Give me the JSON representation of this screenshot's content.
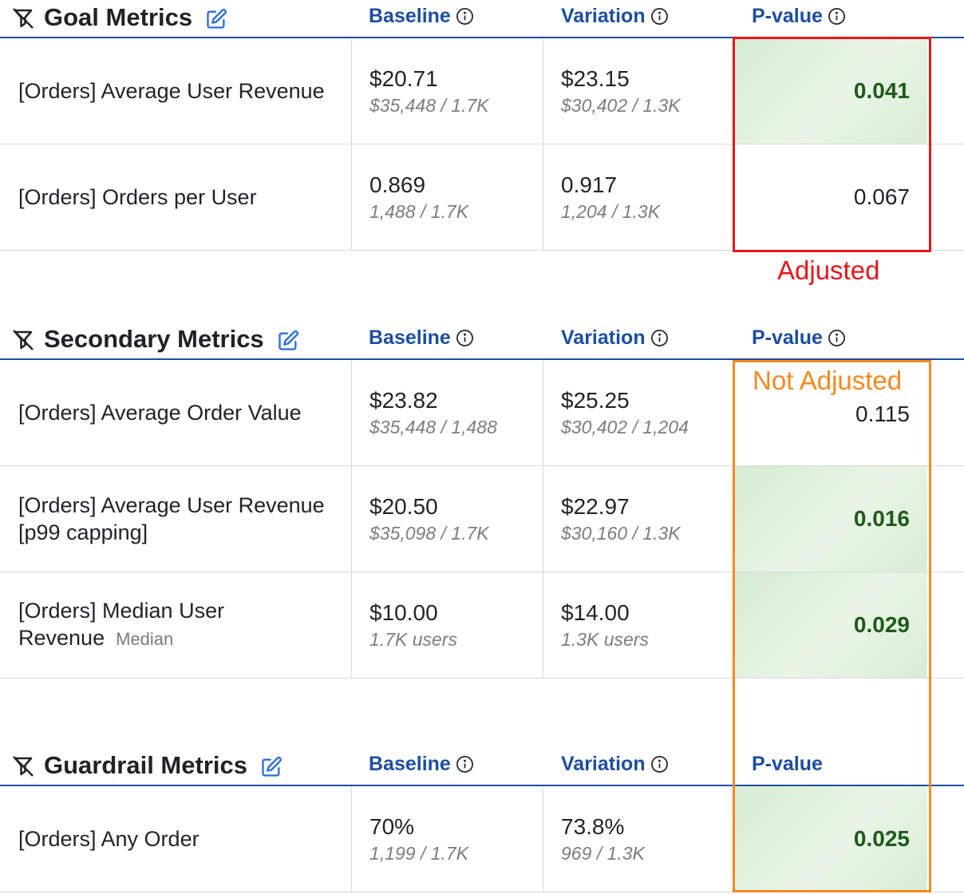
{
  "columns": {
    "baseline": "Baseline",
    "variation": "Variation",
    "pvalue": "P-value"
  },
  "sections": {
    "goal": {
      "title": "Goal Metrics",
      "rows": [
        {
          "name": "[Orders] Average User Revenue",
          "baseline": "$20.71",
          "baseline_frac": "$35,448 / 1.7K",
          "variation": "$23.15",
          "variation_frac": "$30,402 / 1.3K",
          "pvalue": "0.041",
          "significant": true
        },
        {
          "name": "[Orders] Orders per User",
          "baseline": "0.869",
          "baseline_frac": "1,488 / 1.7K",
          "variation": "0.917",
          "variation_frac": "1,204 / 1.3K",
          "pvalue": "0.067",
          "significant": false
        }
      ]
    },
    "secondary": {
      "title": "Secondary Metrics",
      "rows": [
        {
          "name": "[Orders] Average Order Value",
          "baseline": "$23.82",
          "baseline_frac": "$35,448 / 1,488",
          "variation": "$25.25",
          "variation_frac": "$30,402 / 1,204",
          "pvalue": "0.115",
          "significant": false
        },
        {
          "name": "[Orders] Average User Revenue [p99 capping]",
          "baseline": "$20.50",
          "baseline_frac": "$35,098 / 1.7K",
          "variation": "$22.97",
          "variation_frac": "$30,160 / 1.3K",
          "pvalue": "0.016",
          "significant": true
        },
        {
          "name": "[Orders] Median User Revenue",
          "name_sub": "Median",
          "baseline": "$10.00",
          "baseline_frac": "1.7K users",
          "variation": "$14.00",
          "variation_frac": "1.3K users",
          "pvalue": "0.029",
          "significant": true
        }
      ]
    },
    "guardrail": {
      "title": "Guardrail Metrics",
      "rows": [
        {
          "name": "[Orders] Any Order",
          "baseline": "70%",
          "baseline_frac": "1,199 / 1.7K",
          "variation": "73.8%",
          "variation_frac": "969 / 1.3K",
          "pvalue": "0.025",
          "significant": true
        }
      ]
    }
  },
  "annotations": {
    "adjusted": {
      "label": "Adjusted",
      "color": "#e8161b"
    },
    "not_adjusted": {
      "label": "Not Adjusted",
      "color": "#f5891f"
    }
  },
  "colors": {
    "header_blue": "#1c4ea0",
    "significant_bg": "#d6ecd3",
    "significant_text": "#1e5a1a"
  },
  "icons": {
    "filter": "funnel-slash-icon",
    "edit": "pencil-square-icon",
    "info": "info-circle-icon"
  }
}
